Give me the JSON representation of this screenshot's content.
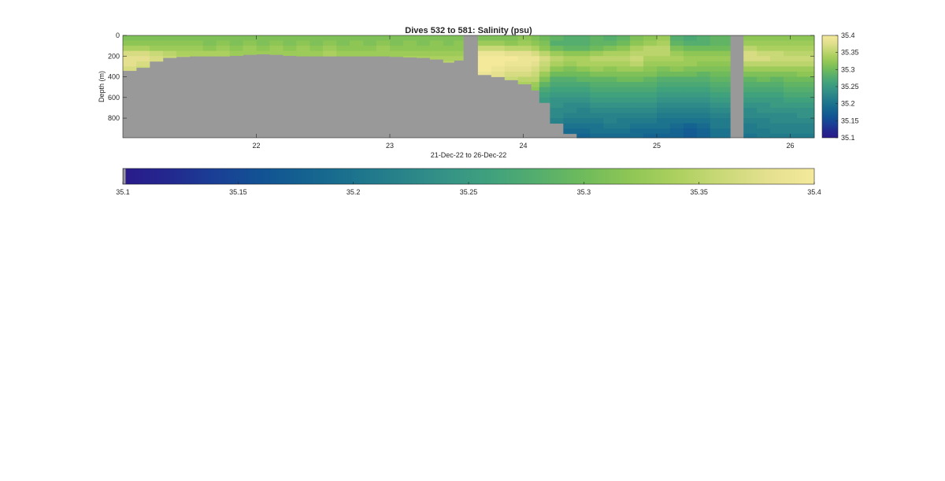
{
  "chart_data": {
    "type": "heatmap",
    "title": "Dives 532 to 581: Salinity (psu)",
    "xlabel": "21-Dec-22 to 26-Dec-22",
    "ylabel": "Depth (m)",
    "xlim": [
      21.0,
      26.18
    ],
    "ylim": [
      990,
      0
    ],
    "x_ticks": [
      22,
      23,
      24,
      25,
      26
    ],
    "x_tick_labels": [
      "22",
      "23",
      "24",
      "25",
      "26"
    ],
    "y_ticks": [
      0,
      200,
      400,
      600,
      800
    ],
    "y_tick_labels": [
      "0",
      "200",
      "400",
      "600",
      "800"
    ],
    "color_range": [
      35.1,
      35.4
    ],
    "colorbar_ticks": [
      35.1,
      35.15,
      35.2,
      35.25,
      35.3,
      35.35,
      35.4
    ],
    "colorbar_tick_labels": [
      "35.1",
      "35.15",
      "35.2",
      "35.25",
      "35.3",
      "35.35",
      "35.4"
    ],
    "depth_levels": [
      0,
      50,
      100,
      150,
      200,
      250,
      300,
      350,
      400,
      450,
      500,
      550,
      600,
      650,
      700,
      750,
      800,
      850,
      900,
      950
    ],
    "no_data_color": "#999999",
    "colormap": [
      "#2a1b8a",
      "#23288f",
      "#1a3f95",
      "#125294",
      "#146390",
      "#1c738d",
      "#28828a",
      "#349386",
      "#40a17d",
      "#55ae6d",
      "#6fbb5c",
      "#8ec655",
      "#acd05f",
      "#cad978",
      "#e4e08f",
      "#f4e99b"
    ],
    "dives": [
      {
        "x0": 21.0,
        "x1": 21.1,
        "max_depth": 340,
        "profile": [
          35.31,
          35.32,
          35.34,
          35.37,
          35.38,
          35.38,
          35.37
        ]
      },
      {
        "x0": 21.1,
        "x1": 21.2,
        "max_depth": 310,
        "profile": [
          35.31,
          35.32,
          35.34,
          35.37,
          35.38,
          35.37,
          35.36
        ]
      },
      {
        "x0": 21.2,
        "x1": 21.3,
        "max_depth": 250,
        "profile": [
          35.31,
          35.32,
          35.33,
          35.36,
          35.37
        ]
      },
      {
        "x0": 21.3,
        "x1": 21.4,
        "max_depth": 215,
        "profile": [
          35.31,
          35.32,
          35.33,
          35.35,
          35.36
        ]
      },
      {
        "x0": 21.4,
        "x1": 21.5,
        "max_depth": 205,
        "profile": [
          35.31,
          35.32,
          35.33,
          35.34,
          35.35
        ]
      },
      {
        "x0": 21.5,
        "x1": 21.6,
        "max_depth": 200,
        "profile": [
          35.31,
          35.32,
          35.33,
          35.34,
          35.35
        ]
      },
      {
        "x0": 21.6,
        "x1": 21.7,
        "max_depth": 200,
        "profile": [
          35.31,
          35.31,
          35.32,
          35.34
        ]
      },
      {
        "x0": 21.7,
        "x1": 21.8,
        "max_depth": 200,
        "profile": [
          35.31,
          35.32,
          35.33,
          35.34
        ]
      },
      {
        "x0": 21.8,
        "x1": 21.9,
        "max_depth": 195,
        "profile": [
          35.31,
          35.31,
          35.32,
          35.33
        ]
      },
      {
        "x0": 21.9,
        "x1": 22.0,
        "max_depth": 185,
        "profile": [
          35.31,
          35.32,
          35.33,
          35.33
        ]
      },
      {
        "x0": 22.0,
        "x1": 22.1,
        "max_depth": 180,
        "profile": [
          35.31,
          35.31,
          35.32,
          35.33
        ]
      },
      {
        "x0": 22.1,
        "x1": 22.2,
        "max_depth": 185,
        "profile": [
          35.31,
          35.32,
          35.33,
          35.33
        ]
      },
      {
        "x0": 22.2,
        "x1": 22.3,
        "max_depth": 195,
        "profile": [
          35.31,
          35.31,
          35.32,
          35.33
        ]
      },
      {
        "x0": 22.3,
        "x1": 22.4,
        "max_depth": 200,
        "profile": [
          35.31,
          35.32,
          35.33,
          35.33
        ]
      },
      {
        "x0": 22.4,
        "x1": 22.5,
        "max_depth": 200,
        "profile": [
          35.31,
          35.31,
          35.32,
          35.33
        ]
      },
      {
        "x0": 22.5,
        "x1": 22.6,
        "max_depth": 200,
        "profile": [
          35.31,
          35.32,
          35.33,
          35.34
        ]
      },
      {
        "x0": 22.6,
        "x1": 22.7,
        "max_depth": 200,
        "profile": [
          35.31,
          35.31,
          35.32,
          35.33
        ]
      },
      {
        "x0": 22.7,
        "x1": 22.8,
        "max_depth": 200,
        "profile": [
          35.31,
          35.32,
          35.32,
          35.33
        ]
      },
      {
        "x0": 22.8,
        "x1": 22.9,
        "max_depth": 200,
        "profile": [
          35.31,
          35.31,
          35.32,
          35.33
        ]
      },
      {
        "x0": 22.9,
        "x1": 23.0,
        "max_depth": 200,
        "profile": [
          35.31,
          35.32,
          35.33,
          35.33
        ]
      },
      {
        "x0": 23.0,
        "x1": 23.1,
        "max_depth": 205,
        "profile": [
          35.31,
          35.31,
          35.32,
          35.33,
          35.33
        ]
      },
      {
        "x0": 23.1,
        "x1": 23.2,
        "max_depth": 210,
        "profile": [
          35.31,
          35.32,
          35.32,
          35.33,
          35.34
        ]
      },
      {
        "x0": 23.2,
        "x1": 23.3,
        "max_depth": 215,
        "profile": [
          35.31,
          35.31,
          35.32,
          35.33,
          35.34
        ]
      },
      {
        "x0": 23.3,
        "x1": 23.4,
        "max_depth": 230,
        "profile": [
          35.31,
          35.32,
          35.32,
          35.33,
          35.34
        ]
      },
      {
        "x0": 23.4,
        "x1": 23.48,
        "max_depth": 260,
        "profile": [
          35.31,
          35.31,
          35.32,
          35.33,
          35.34,
          35.35
        ]
      },
      {
        "x0": 23.48,
        "x1": 23.55,
        "max_depth": 240,
        "profile": [
          35.31,
          35.32,
          35.32,
          35.33,
          35.34
        ]
      },
      {
        "x0": 23.66,
        "x1": 23.76,
        "max_depth": 380,
        "profile": [
          35.31,
          35.33,
          35.36,
          35.39,
          35.4,
          35.4,
          35.4,
          35.39
        ]
      },
      {
        "x0": 23.76,
        "x1": 23.86,
        "max_depth": 400,
        "profile": [
          35.31,
          35.33,
          35.36,
          35.39,
          35.4,
          35.4,
          35.39,
          35.38,
          35.37
        ]
      },
      {
        "x0": 23.86,
        "x1": 23.96,
        "max_depth": 430,
        "profile": [
          35.31,
          35.32,
          35.35,
          35.38,
          35.4,
          35.39,
          35.38,
          35.37,
          35.36
        ]
      },
      {
        "x0": 23.96,
        "x1": 24.06,
        "max_depth": 470,
        "profile": [
          35.32,
          35.33,
          35.35,
          35.38,
          35.39,
          35.39,
          35.38,
          35.37,
          35.35,
          35.34
        ]
      },
      {
        "x0": 24.06,
        "x1": 24.12,
        "max_depth": 530,
        "profile": [
          35.31,
          35.32,
          35.34,
          35.37,
          35.39,
          35.38,
          35.37,
          35.36,
          35.35,
          35.33,
          35.32
        ]
      },
      {
        "x0": 24.12,
        "x1": 24.2,
        "max_depth": 650,
        "profile": [
          35.3,
          35.31,
          35.32,
          35.35,
          35.37,
          35.36,
          35.35,
          35.33,
          35.31,
          35.29,
          35.27,
          35.26,
          35.25
        ]
      },
      {
        "x0": 24.2,
        "x1": 24.3,
        "max_depth": 850,
        "profile": [
          35.29,
          35.28,
          35.3,
          35.33,
          35.35,
          35.34,
          35.32,
          35.3,
          35.28,
          35.27,
          35.26,
          35.25,
          35.24,
          35.24,
          35.23,
          35.23,
          35.22
        ]
      },
      {
        "x0": 24.3,
        "x1": 24.4,
        "max_depth": 950,
        "profile": [
          35.28,
          35.28,
          35.29,
          35.32,
          35.34,
          35.33,
          35.31,
          35.3,
          35.28,
          35.27,
          35.26,
          35.25,
          35.24,
          35.23,
          35.23,
          35.22,
          35.21,
          35.2,
          35.19
        ]
      },
      {
        "x0": 24.4,
        "x1": 24.5,
        "max_depth": 990,
        "profile": [
          35.28,
          35.28,
          35.29,
          35.32,
          35.34,
          35.34,
          35.32,
          35.3,
          35.29,
          35.27,
          35.26,
          35.25,
          35.24,
          35.23,
          35.22,
          35.22,
          35.21,
          35.2,
          35.19,
          35.18
        ]
      },
      {
        "x0": 24.5,
        "x1": 24.6,
        "max_depth": 990,
        "profile": [
          35.29,
          35.29,
          35.3,
          35.33,
          35.35,
          35.34,
          35.33,
          35.31,
          35.29,
          35.28,
          35.27,
          35.26,
          35.25,
          35.24,
          35.23,
          35.22,
          35.21,
          35.2,
          35.2,
          35.19
        ]
      },
      {
        "x0": 24.6,
        "x1": 24.7,
        "max_depth": 990,
        "profile": [
          35.28,
          35.29,
          35.31,
          35.34,
          35.35,
          35.34,
          35.32,
          35.31,
          35.29,
          35.28,
          35.27,
          35.26,
          35.25,
          35.24,
          35.23,
          35.22,
          35.22,
          35.21,
          35.2,
          35.19
        ]
      },
      {
        "x0": 24.7,
        "x1": 24.8,
        "max_depth": 990,
        "profile": [
          35.29,
          35.3,
          35.32,
          35.34,
          35.35,
          35.34,
          35.33,
          35.31,
          35.3,
          35.28,
          35.27,
          35.26,
          35.25,
          35.24,
          35.23,
          35.22,
          35.21,
          35.21,
          35.2,
          35.19
        ]
      },
      {
        "x0": 24.8,
        "x1": 24.9,
        "max_depth": 990,
        "profile": [
          35.31,
          35.32,
          35.34,
          35.35,
          35.36,
          35.35,
          35.33,
          35.31,
          35.3,
          35.28,
          35.27,
          35.26,
          35.25,
          35.24,
          35.23,
          35.22,
          35.21,
          35.2,
          35.19,
          35.19
        ]
      },
      {
        "x0": 24.9,
        "x1": 25.0,
        "max_depth": 990,
        "profile": [
          35.32,
          35.33,
          35.35,
          35.35,
          35.34,
          35.33,
          35.32,
          35.31,
          35.29,
          35.28,
          35.27,
          35.26,
          35.25,
          35.24,
          35.23,
          35.22,
          35.21,
          35.2,
          35.19,
          35.18
        ]
      },
      {
        "x0": 25.0,
        "x1": 25.1,
        "max_depth": 990,
        "profile": [
          35.33,
          35.34,
          35.35,
          35.35,
          35.34,
          35.33,
          35.31,
          35.3,
          35.28,
          35.27,
          35.26,
          35.25,
          35.24,
          35.23,
          35.22,
          35.21,
          35.2,
          35.2,
          35.19,
          35.18
        ]
      },
      {
        "x0": 25.1,
        "x1": 25.2,
        "max_depth": 990,
        "profile": [
          35.28,
          35.29,
          35.31,
          35.33,
          35.34,
          35.33,
          35.32,
          35.3,
          35.28,
          35.27,
          35.26,
          35.25,
          35.24,
          35.23,
          35.22,
          35.21,
          35.2,
          35.19,
          35.18,
          35.18
        ]
      },
      {
        "x0": 25.2,
        "x1": 25.3,
        "max_depth": 990,
        "profile": [
          35.27,
          35.28,
          35.3,
          35.32,
          35.33,
          35.33,
          35.31,
          35.3,
          35.28,
          35.27,
          35.26,
          35.25,
          35.24,
          35.23,
          35.22,
          35.21,
          35.2,
          35.18,
          35.17,
          35.17
        ]
      },
      {
        "x0": 25.3,
        "x1": 25.4,
        "max_depth": 990,
        "profile": [
          35.28,
          35.28,
          35.3,
          35.32,
          35.33,
          35.32,
          35.31,
          35.29,
          35.28,
          35.27,
          35.26,
          35.25,
          35.24,
          35.23,
          35.22,
          35.21,
          35.2,
          35.19,
          35.18,
          35.18
        ]
      },
      {
        "x0": 25.4,
        "x1": 25.55,
        "max_depth": 990,
        "profile": [
          35.29,
          35.29,
          35.3,
          35.32,
          35.33,
          35.32,
          35.31,
          35.3,
          35.29,
          35.28,
          35.27,
          35.26,
          35.25,
          35.24,
          35.23,
          35.22,
          35.21,
          35.21,
          35.2,
          35.2
        ]
      },
      {
        "x0": 25.65,
        "x1": 25.75,
        "max_depth": 990,
        "profile": [
          35.32,
          35.33,
          35.35,
          35.37,
          35.37,
          35.35,
          35.33,
          35.31,
          35.29,
          35.28,
          35.27,
          35.26,
          35.25,
          35.24,
          35.23,
          35.23,
          35.22,
          35.21,
          35.21,
          35.2
        ]
      },
      {
        "x0": 25.75,
        "x1": 25.85,
        "max_depth": 990,
        "profile": [
          35.32,
          35.33,
          35.34,
          35.36,
          35.37,
          35.35,
          35.33,
          35.31,
          35.3,
          35.28,
          35.27,
          35.26,
          35.25,
          35.24,
          35.24,
          35.23,
          35.22,
          35.22,
          35.21,
          35.21
        ]
      },
      {
        "x0": 25.85,
        "x1": 25.95,
        "max_depth": 990,
        "profile": [
          35.32,
          35.33,
          35.34,
          35.36,
          35.36,
          35.35,
          35.33,
          35.31,
          35.29,
          35.28,
          35.27,
          35.26,
          35.25,
          35.25,
          35.24,
          35.23,
          35.23,
          35.22,
          35.22,
          35.21
        ]
      },
      {
        "x0": 25.95,
        "x1": 26.05,
        "max_depth": 990,
        "profile": [
          35.32,
          35.33,
          35.34,
          35.35,
          35.36,
          35.35,
          35.33,
          35.31,
          35.3,
          35.29,
          35.28,
          35.27,
          35.26,
          35.25,
          35.24,
          35.23,
          35.23,
          35.22,
          35.22,
          35.21
        ]
      },
      {
        "x0": 26.05,
        "x1": 26.18,
        "max_depth": 990,
        "profile": [
          35.32,
          35.33,
          35.34,
          35.35,
          35.36,
          35.35,
          35.33,
          35.32,
          35.3,
          35.29,
          35.28,
          35.27,
          35.26,
          35.25,
          35.24,
          35.24,
          35.23,
          35.22,
          35.22,
          35.21
        ]
      }
    ]
  }
}
